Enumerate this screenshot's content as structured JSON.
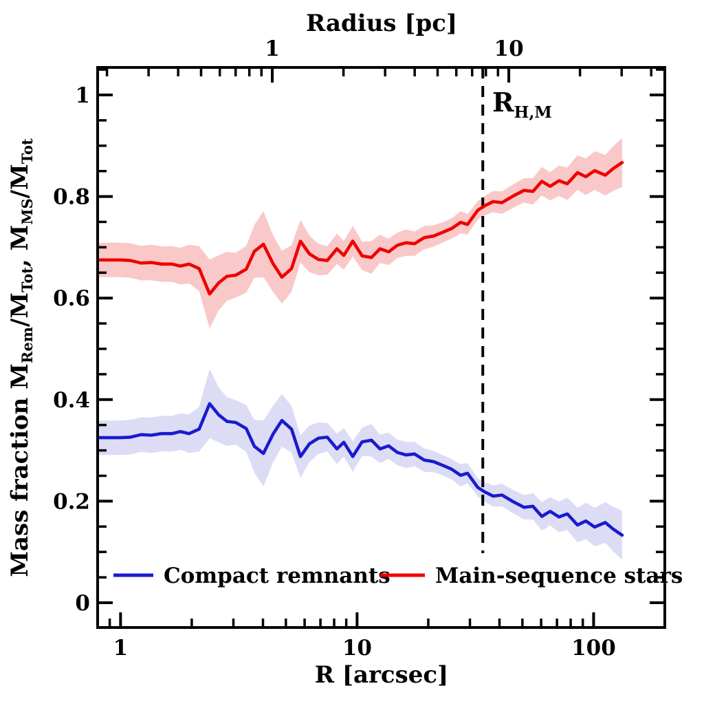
{
  "chart_data": {
    "type": "line",
    "title": "",
    "x_axis": {
      "label": "R [arcsec]",
      "scale": "log",
      "range": [
        0.8,
        200
      ],
      "major_tick_values": [
        1,
        10,
        100
      ],
      "tick_labels": [
        "1",
        "10",
        "100"
      ],
      "minor_tick_values": [
        0.9,
        2,
        3,
        4,
        5,
        6,
        7,
        8,
        9,
        20,
        30,
        40,
        50,
        60,
        70,
        80,
        90
      ]
    },
    "top_axis": {
      "label": "Radius [pc]",
      "scale": "log",
      "unit": "pc",
      "arcsec_per_pc": 4.38,
      "major_tick_values_pc": [
        1,
        10
      ],
      "tick_labels": [
        "1",
        "10"
      ],
      "minor_tick_values_pc": [
        0.2,
        0.3,
        0.4,
        0.5,
        0.6,
        0.7,
        0.8,
        0.9,
        2,
        3,
        4,
        5,
        6,
        7,
        8,
        9,
        20,
        30,
        40
      ]
    },
    "y_axis": {
      "label": "Mass fraction  M_Rem/M_Tot, M_MS/M_Tot",
      "label_segments": [
        {
          "t": "Mass fraction   ",
          "sub": false
        },
        {
          "t": "M",
          "sub": false
        },
        {
          "t": "Rem",
          "sub": true
        },
        {
          "t": "/M",
          "sub": false
        },
        {
          "t": "Tot",
          "sub": true
        },
        {
          "t": ",  ",
          "sub": false
        },
        {
          "t": "M",
          "sub": false
        },
        {
          "t": "MS",
          "sub": true
        },
        {
          "t": "/M",
          "sub": false
        },
        {
          "t": "Tot",
          "sub": true
        }
      ],
      "scale": "linear",
      "range": [
        -0.047,
        1.054
      ],
      "major_tick_values": [
        0,
        0.2,
        0.4,
        0.6,
        0.8,
        1.0
      ],
      "tick_labels": [
        "0",
        "0.2",
        "0.4",
        "0.6",
        "0.8",
        "1"
      ],
      "minor_tick_step": 0.05
    },
    "annotation": {
      "main": "R",
      "sub": "H,M",
      "x_arcsec": 34,
      "line_style": "dashed",
      "line_color": "#000000"
    },
    "x_arcsec": [
      0.8,
      0.9,
      1.0,
      1.1,
      1.22,
      1.35,
      1.49,
      1.65,
      1.79,
      1.95,
      2.15,
      2.38,
      2.6,
      2.82,
      3.07,
      3.4,
      3.68,
      4.02,
      4.41,
      4.81,
      5.28,
      5.76,
      6.29,
      6.86,
      7.48,
      8.22,
      8.79,
      9.59,
      10.5,
      11.5,
      12.5,
      13.6,
      14.8,
      16.1,
      17.5,
      19.2,
      21.0,
      22.9,
      25.1,
      27.4,
      29.3,
      32.4,
      34.7,
      37.6,
      41.0,
      45.3,
      50.8,
      55.4,
      60.4,
      65.5,
      71.4,
      77.4,
      85.5,
      92.7,
      101,
      112,
      121,
      132
    ],
    "series": [
      {
        "name": "Compact remnants",
        "color": "#1a1ace",
        "band_color": "#dcdcf5",
        "values": [
          0.325,
          0.325,
          0.325,
          0.326,
          0.331,
          0.33,
          0.333,
          0.333,
          0.337,
          0.333,
          0.342,
          0.392,
          0.37,
          0.357,
          0.355,
          0.343,
          0.308,
          0.294,
          0.332,
          0.359,
          0.342,
          0.288,
          0.313,
          0.324,
          0.326,
          0.303,
          0.316,
          0.288,
          0.317,
          0.32,
          0.303,
          0.309,
          0.296,
          0.291,
          0.293,
          0.281,
          0.278,
          0.271,
          0.263,
          0.251,
          0.255,
          0.227,
          0.218,
          0.21,
          0.212,
          0.2,
          0.188,
          0.19,
          0.17,
          0.18,
          0.169,
          0.175,
          0.153,
          0.161,
          0.149,
          0.158,
          0.145,
          0.133
        ],
        "band_half_width": [
          0.034,
          0.034,
          0.034,
          0.034,
          0.034,
          0.035,
          0.035,
          0.035,
          0.036,
          0.038,
          0.044,
          0.068,
          0.054,
          0.048,
          0.044,
          0.046,
          0.052,
          0.065,
          0.056,
          0.052,
          0.046,
          0.042,
          0.036,
          0.031,
          0.028,
          0.03,
          0.028,
          0.03,
          0.028,
          0.032,
          0.028,
          0.026,
          0.025,
          0.026,
          0.024,
          0.023,
          0.021,
          0.02,
          0.02,
          0.022,
          0.02,
          0.018,
          0.019,
          0.021,
          0.022,
          0.023,
          0.024,
          0.026,
          0.028,
          0.028,
          0.03,
          0.032,
          0.034,
          0.036,
          0.038,
          0.04,
          0.044,
          0.048
        ]
      },
      {
        "name": "Main-sequence stars",
        "color": "#ef0000",
        "band_color": "#f9c8c8",
        "values": [
          0.675,
          0.675,
          0.675,
          0.674,
          0.669,
          0.67,
          0.667,
          0.667,
          0.663,
          0.667,
          0.658,
          0.608,
          0.63,
          0.643,
          0.645,
          0.657,
          0.692,
          0.706,
          0.668,
          0.641,
          0.658,
          0.712,
          0.687,
          0.676,
          0.674,
          0.697,
          0.684,
          0.712,
          0.683,
          0.68,
          0.697,
          0.691,
          0.704,
          0.709,
          0.707,
          0.719,
          0.722,
          0.729,
          0.737,
          0.749,
          0.745,
          0.773,
          0.782,
          0.79,
          0.788,
          0.8,
          0.812,
          0.81,
          0.83,
          0.82,
          0.831,
          0.825,
          0.847,
          0.839,
          0.851,
          0.842,
          0.855,
          0.867
        ],
        "band_half_width": [
          0.034,
          0.034,
          0.034,
          0.034,
          0.034,
          0.035,
          0.035,
          0.035,
          0.036,
          0.038,
          0.044,
          0.068,
          0.054,
          0.048,
          0.044,
          0.046,
          0.052,
          0.065,
          0.056,
          0.052,
          0.046,
          0.042,
          0.036,
          0.031,
          0.028,
          0.03,
          0.028,
          0.03,
          0.028,
          0.032,
          0.028,
          0.026,
          0.025,
          0.026,
          0.024,
          0.023,
          0.021,
          0.02,
          0.02,
          0.022,
          0.02,
          0.018,
          0.019,
          0.021,
          0.022,
          0.023,
          0.024,
          0.026,
          0.028,
          0.028,
          0.03,
          0.032,
          0.034,
          0.036,
          0.038,
          0.04,
          0.044,
          0.048
        ]
      }
    ],
    "legend_position": "bottom-inside",
    "grid": false
  }
}
